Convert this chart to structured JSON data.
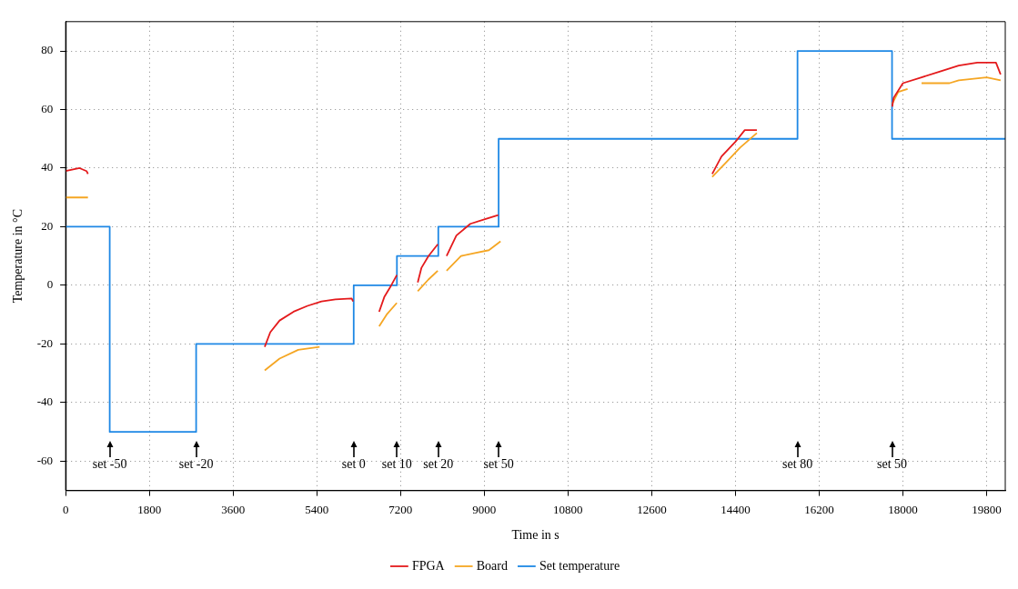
{
  "chart_data": {
    "type": "line",
    "xlabel": "Time in s",
    "ylabel": "Temperature in °C",
    "xlim": [
      0,
      20200
    ],
    "xticks": [
      0,
      1800,
      3600,
      5400,
      7200,
      9000,
      10800,
      12600,
      14400,
      16200,
      18000,
      19800
    ],
    "ylim": [
      -70,
      90
    ],
    "yticks": [
      -60,
      -40,
      -20,
      0,
      20,
      40,
      60,
      80
    ],
    "grid": true,
    "legend": "bottom",
    "marker": "none",
    "line_style": "solid",
    "series": [
      {
        "name": "FPGA",
        "color": "#e41a1c",
        "x": [
          0,
          300,
          450,
          480,
          600,
          4280,
          4400,
          4600,
          4900,
          5200,
          5500,
          5800,
          6150,
          6180,
          6400,
          6740,
          6850,
          7000,
          7120,
          7300,
          7570,
          7650,
          7800,
          8000,
          8100,
          8190,
          8400,
          8700,
          9000,
          9300,
          9500,
          13900,
          14100,
          14400,
          14600,
          14860,
          15000,
          17770,
          17800,
          18000,
          18400,
          18800,
          19200,
          19600,
          20000,
          20100
        ],
        "values": [
          39,
          40,
          39,
          38,
          null,
          -21,
          -16,
          -12,
          -9,
          -7,
          -5.5,
          -4.8,
          -4.5,
          -5.5,
          null,
          -9,
          -4,
          0,
          3.5,
          null,
          1,
          6,
          10,
          14,
          null,
          10,
          17,
          21,
          22.5,
          24,
          null,
          38,
          44,
          49,
          53,
          53,
          null,
          61,
          64,
          69,
          71,
          73,
          75,
          76,
          76,
          72
        ]
      },
      {
        "name": "Board",
        "color": "#f5a623",
        "x": [
          0,
          480,
          600,
          4280,
          4600,
          5000,
          5460,
          5600,
          6740,
          6900,
          7120,
          7300,
          7570,
          7800,
          8000,
          8100,
          8190,
          8500,
          8800,
          9100,
          9350,
          9500,
          13900,
          14200,
          14500,
          14860,
          15000,
          17770,
          17900,
          18100,
          18150,
          18400,
          19000,
          19200,
          19800,
          20100
        ],
        "values": [
          30,
          30,
          null,
          -29,
          -25,
          -22,
          -21,
          null,
          -14,
          -10,
          -6,
          null,
          -2,
          2,
          5,
          null,
          5,
          10,
          11,
          12,
          15,
          null,
          37,
          42,
          47,
          52,
          null,
          62,
          66,
          67,
          null,
          69,
          69,
          70,
          71,
          70
        ]
      },
      {
        "name": "Set temperature",
        "type": "step",
        "color": "#1e88e5",
        "x": [
          0,
          948,
          2806,
          6193,
          7122,
          8012,
          9309,
          15734,
          17766,
          20200
        ],
        "values": [
          20,
          -50,
          -20,
          0,
          10,
          20,
          50,
          80,
          50,
          50
        ]
      }
    ],
    "annotations": [
      "set -50",
      "set -20",
      "set 0",
      "set 10",
      "set 20",
      "set 50",
      "set 80",
      "set 50"
    ]
  }
}
